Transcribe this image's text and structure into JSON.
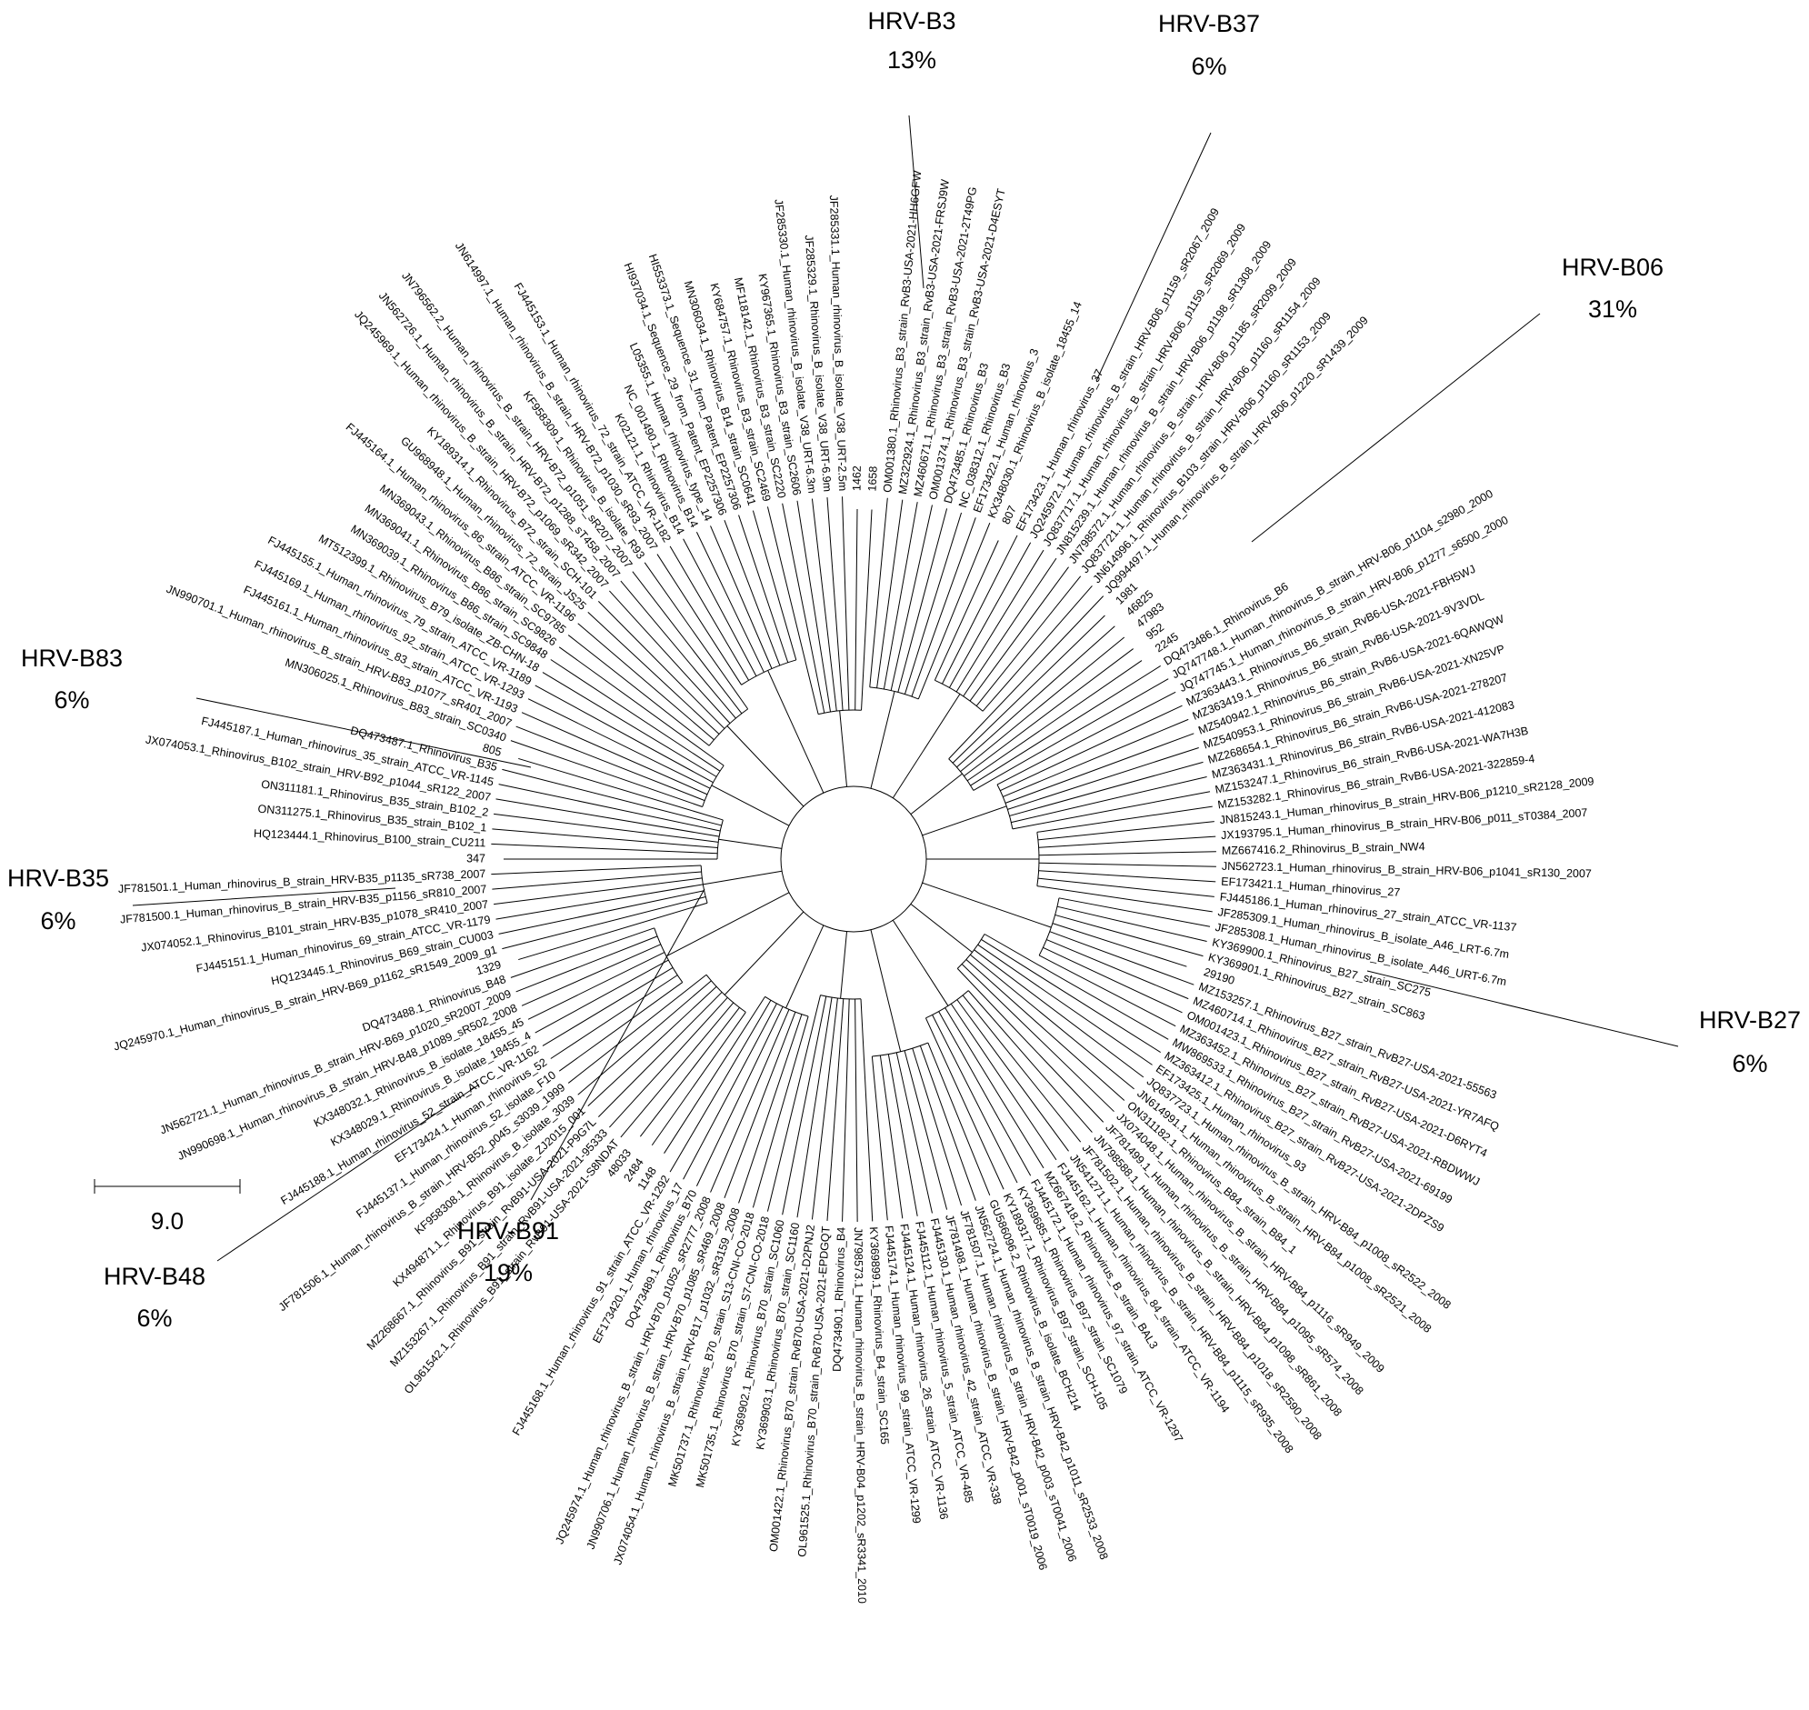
{
  "tree": {
    "leaves": [
      "347",
      "HQ123444.1_Rhinovirus_B100_strain_CU211",
      "ON311275.1_Rhinovirus_B35_strain_B102_1",
      "ON311181.1_Rhinovirus_B35_strain_B102_2",
      "JX074053.1_Rhinovirus_B102_strain_HRV-B92_p1044_sR122_2007",
      "FJ445187.1_Human_rhinovirus_35_strain_ATCC_VR-1145",
      "DQ473487.1_Rhinovirus_B35",
      "805",
      "MN306025.1_Rhinovirus_B83_strain_SC0340",
      "JN990701.1_Human_rhinovirus_B_strain_HRV-B83_p1077_sR401_2007",
      "FJ445161.1_Human_rhinovirus_83_strain_ATCC_VR-1193",
      "FJ445169.1_Human_rhinovirus_92_strain_ATCC_VR-1293",
      "FJ445155.1_Human_rhinovirus_79_strain_ATCC_VR-1189",
      "MT512399.1_Rhinovirus_B79_isolate_ZB-CHN-18",
      "MN369039.1_Rhinovirus_B86_strain_SC9848",
      "MN369041.1_Rhinovirus_B86_strain_SC9826",
      "MN369043.1_Rhinovirus_B86_strain_SC9785",
      "FJ445164.1_Human_rhinovirus_86_strain_ATCC_VR-1196",
      "GU968948.1_Human_rhinovirus_72_strain_JS25",
      "KY189314.1_Rhinovirus_B72_strain_SCH-101",
      "JQ245969.1_Human_rhinovirus_B_strain_HRV-B72_p1069_sR342_2007",
      "JN562726.1_Human_rhinovirus_B_strain_HRV-B72_p1288_sT458_2007",
      "JN796562.2_Human_rhinovirus_B_strain_HRV-B72_p1051_sR207_2007",
      "KF958309.1_Rhinovirus_B_isolate_R93",
      "JN614997.1_Human_rhinovirus_B_strain_HRV-B72_p1030_sR93_2007",
      "FJ445153.1_Human_rhinovirus_72_strain_ATCC_VR-1182",
      "K02121.1_Rhinovirus_B14",
      "NC_001490.1_Rhinovirus_B14",
      "L05355.1_Human_rhinovirus_type_14",
      "HI937034.1_Sequence_29_from_Patent_EP2257306",
      "HI553373.1_Sequence_31_from_Patent_EP2257306",
      "MN306034.1_Rhinovirus_B14_strain_SC0641",
      "KY684757.1_Rhinovirus_B3_strain_SC2469",
      "MF118142.1_Rhinovirus_B3_strain_SC2220",
      "KY967365.1_Rhinovirus_B3_strain_SC2606",
      "JF285330.1_Human_rhinovirus_B_isolate_V38_URT-6.3m",
      "JF285329.1_Rhinovirus_B_isolate_V38_URT-6.9m",
      "JF285331.1_Human_rhinovirus_B_isolate_V38_URT-2.5m",
      "1462",
      "1658",
      "OM001380.1_Rhinovirus_B3_strain_RvB3-USA-2021-HH6GFW",
      "MZ322924.1_Rhinovirus_B3_strain_RvB3-USA-2021-FRSJ9W",
      "MZ460671.1_Rhinovirus_B3_strain_RvB3-USA-2021-2T49PG",
      "OM001374.1_Rhinovirus_B3_strain_RvB3-USA-2021-D4ESYT",
      "DQ473485.1_Rhinovirus_B3",
      "NC_038312.1_Rhinovirus_B3",
      "EF173422.1_Human_rhinovirus_3",
      "KX348030.1_Rhinovirus_B_isolate_18455_14",
      "807",
      "EF173423.1_Human_rhinovirus_37",
      "JQ245972.1_Human_rhinovirus_B_strain_HRV-B06_p1159_sR2067_2009",
      "JQ837717.1_Human_rhinovirus_B_strain_HRV-B06_p1159_sR2069_2009",
      "JN815239.1_Human_rhinovirus_B_strain_HRV-B06_p1198_sR1308_2009",
      "JN798572.1_Human_rhinovirus_B_strain_HRV-B06_p1185_sR2099_2009",
      "JQ837721.1_Human_rhinovirus_B_strain_HRV-B06_p1160_sR1154_2009",
      "JN614996.1_Rhinovirus_B103_strain_HRV-B06_p1160_sR1153_2009",
      "JQ994497.1_Human_rhinovirus_B_strain_HRV-B06_p1220_sR1439_2009",
      "1981",
      "46825",
      "47983",
      "952",
      "2245",
      "DQ473486.1_Rhinovirus_B6",
      "JQ747748.1_Human_rhinovirus_B_strain_HRV-B06_p1104_s2980_2000",
      "JQ747745.1_Human_rhinovirus_B_strain_HRV-B06_p1277_s6500_2000",
      "MZ363443.1_Rhinovirus_B6_strain_RvB6-USA-2021-FBH5WJ",
      "MZ363419.1_Rhinovirus_B6_strain_RvB6-USA-2021-9V3VDL",
      "MZ540942.1_Rhinovirus_B6_strain_RvB6-USA-2021-6QAWQW",
      "MZ540953.1_Rhinovirus_B6_strain_RvB6-USA-2021-XN25VP",
      "MZ268654.1_Rhinovirus_B6_strain_RvB6-USA-2021-278207",
      "MZ363431.1_Rhinovirus_B6_strain_RvB6-USA-2021-412083",
      "MZ153247.1_Rhinovirus_B6_strain_RvB6-USA-2021-WA7H3B",
      "MZ153282.1_Rhinovirus_B6_strain_RvB6-USA-2021-322859-4",
      "JN815243.1_Human_rhinovirus_B_strain_HRV-B06_p1210_sR2128_2009",
      "JX193795.1_Human_rhinovirus_B_strain_HRV-B06_p011_sT0384_2007",
      "MZ667416.2_Rhinovirus_B_strain_NW4",
      "JN562723.1_Human_rhinovirus_B_strain_HRV-B06_p1041_sR130_2007",
      "EF173421.1_Human_rhinovirus_27",
      "FJ445186.1_Human_rhinovirus_27_strain_ATCC_VR-1137",
      "JF285309.1_Human_rhinovirus_B_isolate_A46_LRT-6.7m",
      "JF285308.1_Human_rhinovirus_B_isolate_A46_URT-6.7m",
      "KY369900.1_Rhinovirus_B27_strain_SC275",
      "KY369901.1_Rhinovirus_B27_strain_SC863",
      "29190",
      "MZ153257.1_Rhinovirus_B27_strain_RvB27-USA-2021-55563",
      "MZ460714.1_Rhinovirus_B27_strain_RvB27-USA-2021-YR7AFQ",
      "OM001423.1_Rhinovirus_B27_strain_RvB27-USA-2021-D6RYT4",
      "MZ363452.1_Rhinovirus_B27_strain_RvB27-USA-2021-RBDWWJ",
      "MW869533.1_Rhinovirus_B27_strain_RvB27-USA-2021-69199",
      "MZ363412.1_Rhinovirus_B27_strain_RvB27-USA-2021-2DPZS9",
      "EF173425.1_Human_rhinovirus_93",
      "JQ837723.1_Human_rhinovirus_B_strain_HRV-B84_p1008_sR2522_2008",
      "JN614991.1_Human_rhinovirus_B_strain_HRV-B84_p1008_sR2521_2008",
      "ON311182.1_Rhinovirus_B84_strain_B84_1",
      "JX074048.1_Human_rhinovirus_B_strain_HRV-B84_p1116_sR949_2009",
      "JF781499.1_Human_rhinovirus_B_strain_HRV-B84_p1095_sR574_2008",
      "JN798588.1_Human_rhinovirus_B_strain_HRV-B84_p1098_sR861_2008",
      "JF781502.1_Human_rhinovirus_B_strain_HRV-B84_p1018_sR2590_2008",
      "JN541271.1_Human_rhinovirus_B_strain_HRV-B84_p1115_sR935_2008",
      "FJ445162.1_Human_rhinovirus_84_strain_ATCC_VR-1194",
      "MZ667418.2_Rhinovirus_B_strain_BAL3",
      "FJ445172.1_Human_rhinovirus_97_strain_ATCC_VR-1297",
      "KY369685.1_Rhinovirus_B97_strain_SC1079",
      "KY189317.1_Rhinovirus_B97_strain_SCH-105",
      "GU586096.2_Rhinovirus_B_isolate_BCH214",
      "JN562724.1_Human_rhinovirus_B_strain_HRV-B42_p1011_sR2533_2008",
      "JF781507.1_Human_rhinovirus_B_strain_HRV-B42_p003_sT0041_2006",
      "JF781498.1_Human_rhinovirus_B_strain_HRV-B42_p001_sT0019_2006",
      "FJ445130.1_Human_rhinovirus_42_strain_ATCC_VR-338",
      "FJ445112.1_Human_rhinovirus_5_strain_ATCC_VR-485",
      "FJ445124.1_Human_rhinovirus_26_strain_ATCC_VR-1136",
      "FJ445174.1_Human_rhinovirus_99_strain_ATCC_VR-1299",
      "KY369899.1_Rhinovirus_B4_strain_SC165",
      "JN798573.1_Human_rhinovirus_B_strain_HRV-B04_p1202_sR3341_2010",
      "DQ473490.1_Rhinovirus_B4",
      "OL961525.1_Rhinovirus_B70_strain_RvB70-USA-2021-EPDGQT",
      "OM001422.1_Rhinovirus_B70_strain_RvB70-USA-2021-D2PNJ2",
      "KY369903.1_Rhinovirus_B70_strain_SC1160",
      "KY369902.1_Rhinovirus_B70_strain_SC1060",
      "MK501735.1_Rhinovirus_B70_strain_S7-CNI-CO-2018",
      "MK501737.1_Rhinovirus_B70_strain_S13-CNI-CO-2018",
      "JX074054.1_Human_rhinovirus_B_strain_HRV-B17_p1032_sR3159_2008",
      "JN990706.1_Human_rhinovirus_B_strain_HRV-B70_p1085_sR469_2008",
      "JQ245974.1_Human_rhinovirus_B_strain_HRV-B70_p1052_sR2777_2008",
      "DQ473489.1_Rhinovirus_B70",
      "EF173420.1_Human_rhinovirus_17",
      "FJ445168.1_Human_rhinovirus_91_strain_ATCC_VR-1292",
      "1148",
      "2484",
      "48033",
      "OL961542.1_Rhinovirus_B91_strain_RvB91-USA-2021-S8NDAT",
      "MZ153267.1_Rhinovirus_B91_strain_RvB91-USA-2021-95333",
      "MZ268667.1_Rhinovirus_B91_strain_RvB91-USA-2021-P9G7L",
      "KX494871.1_Rhinovirus_B91_isolate_ZJ2015_001",
      "KF958308.1_Rhinovirus_B_isolate_3039",
      "JF781506.1_Human_rhinovirus_B_strain_HRV-B52_p045_s3039_1999",
      "FJ445137.1_Human_rhinovirus_52_isolate_F10",
      "EF173424.1_Human_rhinovirus_52",
      "FJ445188.1_Human_rhinovirus_52_strain_ATCC_VR-1162",
      "KX348029.1_Rhinovirus_B_isolate_18455_4",
      "KX348032.1_Rhinovirus_B_isolate_18455_45",
      "JN990698.1_Human_rhinovirus_B_strain_HRV-B48_p1089_sR502_2008",
      "JN562721.1_Human_rhinovirus_B_strain_HRV-B69_p1020_sR2007_2009",
      "DQ473488.1_Rhinovirus_B48",
      "1329",
      "JQ245970.1_Human_rhinovirus_B_strain_HRV-B69_p1162_sR1549_2009_g1",
      "HQ123445.1_Rhinovirus_B69_strain_CU003",
      "FJ445151.1_Human_rhinovirus_69_strain_ATCC_VR-1179",
      "JX074052.1_Rhinovirus_B101_strain_HRV-B35_p1078_sR410_2007",
      "JF781500.1_Human_rhinovirus_B_strain_HRV-B35_p1156_sR810_2007",
      "JF781501.1_Human_rhinovirus_B_strain_HRV-B35_p1135_sR738_2007"
    ],
    "clades": [
      {
        "name": "HRV-B3",
        "share": "13%"
      },
      {
        "name": "HRV-B37",
        "share": "6%"
      },
      {
        "name": "HRV-B06",
        "share": "31%"
      },
      {
        "name": "HRV-B83",
        "share": "6%"
      },
      {
        "name": "HRV-B35",
        "share": "6%"
      },
      {
        "name": "HRV-B27",
        "share": "6%"
      },
      {
        "name": "HRV-B48",
        "share": "6%"
      },
      {
        "name": "HRV-B91",
        "share": "19%"
      }
    ],
    "scale_bar": "9.0"
  }
}
